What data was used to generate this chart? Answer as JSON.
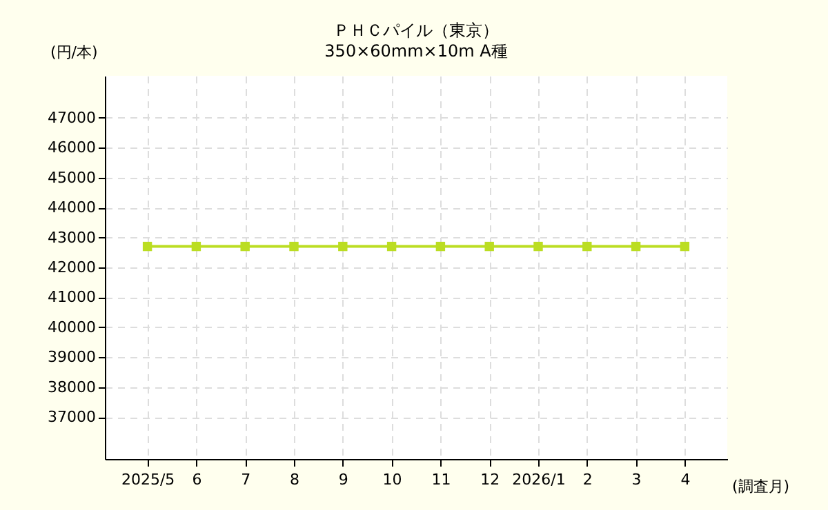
{
  "chart_data": {
    "type": "line",
    "title": "ＰＨＣパイル（東京）",
    "subtitle": "350×60mm×10m A種",
    "ylabel": "(円/本)",
    "xlabel": "(調査月)",
    "categories": [
      "2025/5",
      "6",
      "7",
      "8",
      "9",
      "10",
      "11",
      "12",
      "2026/1",
      "2",
      "3",
      "4"
    ],
    "series": [
      {
        "color": "#bbdd22",
        "values": [
          42700,
          42700,
          42700,
          42700,
          42700,
          42700,
          42700,
          42700,
          42700,
          42700,
          42700,
          42700
        ]
      }
    ],
    "ylim": [
      35600,
      48400
    ],
    "yticks": [
      37000,
      38000,
      39000,
      40000,
      41000,
      42000,
      43000,
      44000,
      45000,
      46000,
      47000
    ],
    "grid": true,
    "marker": "square",
    "line_style": "solid",
    "legend": false
  }
}
